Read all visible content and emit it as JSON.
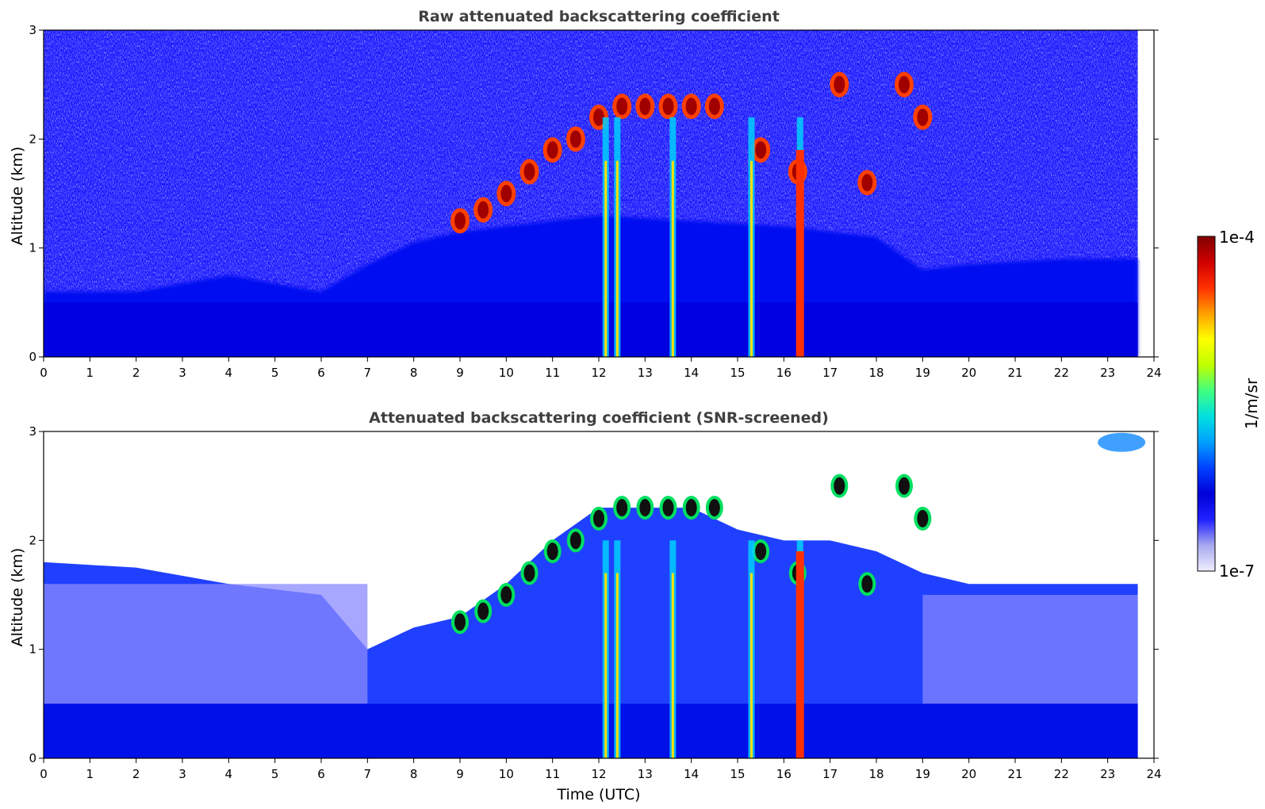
{
  "chart_data": [
    {
      "type": "heatmap",
      "title": "Raw attenuated backscattering coefficient",
      "xlabel": "",
      "ylabel": "Altitude (km)",
      "xlim": [
        0,
        24
      ],
      "ylim": [
        0,
        3
      ],
      "xticks": [
        0,
        1,
        2,
        3,
        4,
        5,
        6,
        7,
        8,
        9,
        10,
        11,
        12,
        13,
        14,
        15,
        16,
        17,
        18,
        19,
        20,
        21,
        22,
        23,
        24
      ],
      "yticks": [
        0,
        1,
        2,
        3
      ],
      "data_end_time": 23.65,
      "colorscale": "log",
      "clim": [
        1e-07,
        0.0001
      ],
      "features": {
        "boundary_layer_top_km": [
          [
            0,
            0.6
          ],
          [
            2,
            0.6
          ],
          [
            4,
            0.75
          ],
          [
            6,
            0.6
          ],
          [
            7,
            0.85
          ],
          [
            8,
            1.05
          ],
          [
            9,
            1.15
          ],
          [
            10,
            1.2
          ],
          [
            12,
            1.3
          ],
          [
            14,
            1.25
          ],
          [
            16,
            1.2
          ],
          [
            18,
            1.1
          ],
          [
            19,
            0.8
          ],
          [
            20,
            0.85
          ],
          [
            22,
            0.9
          ],
          [
            23.65,
            0.9
          ]
        ],
        "cloud_layer_km": [
          [
            9.0,
            1.25
          ],
          [
            9.5,
            1.35
          ],
          [
            10.0,
            1.5
          ],
          [
            10.5,
            1.7
          ],
          [
            11.0,
            1.9
          ],
          [
            11.5,
            2.0
          ],
          [
            12.0,
            2.2
          ],
          [
            12.5,
            2.3
          ],
          [
            13.0,
            2.3
          ],
          [
            13.5,
            2.3
          ],
          [
            14.0,
            2.3
          ],
          [
            14.5,
            2.3
          ],
          [
            15.5,
            1.9
          ],
          [
            16.3,
            1.7
          ],
          [
            17.2,
            2.5
          ],
          [
            17.8,
            1.6
          ],
          [
            18.6,
            2.5
          ],
          [
            19.0,
            2.2
          ]
        ],
        "precipitation_streaks_utc": [
          12.15,
          12.4,
          13.6,
          15.3,
          16.35
        ]
      }
    },
    {
      "type": "heatmap",
      "title": "Attenuated backscattering coefficient (SNR-screened)",
      "xlabel": "Time (UTC)",
      "ylabel": "Altitude (km)",
      "xlim": [
        0,
        24
      ],
      "ylim": [
        0,
        3
      ],
      "xticks": [
        0,
        1,
        2,
        3,
        4,
        5,
        6,
        7,
        8,
        9,
        10,
        11,
        12,
        13,
        14,
        15,
        16,
        17,
        18,
        19,
        20,
        21,
        22,
        23,
        24
      ],
      "yticks": [
        0,
        1,
        2,
        3
      ],
      "data_end_time": 23.65,
      "colorscale": "log",
      "clim": [
        1e-07,
        0.0001
      ],
      "features": {
        "screened_top_km": [
          [
            0,
            1.8
          ],
          [
            2,
            1.75
          ],
          [
            4,
            1.6
          ],
          [
            6,
            1.5
          ],
          [
            7,
            1.0
          ],
          [
            8,
            1.2
          ],
          [
            9,
            1.3
          ],
          [
            10,
            1.6
          ],
          [
            11,
            2.0
          ],
          [
            12,
            2.3
          ],
          [
            13,
            2.3
          ],
          [
            14,
            2.3
          ],
          [
            15,
            2.1
          ],
          [
            16,
            2.0
          ],
          [
            17,
            2.0
          ],
          [
            18,
            1.9
          ],
          [
            19,
            1.7
          ],
          [
            20,
            1.6
          ],
          [
            22,
            1.6
          ],
          [
            23.65,
            1.6
          ]
        ]
      }
    }
  ],
  "colorbar": {
    "label": "1/m/sr",
    "max_label": "1e-4",
    "min_label": "1e-7",
    "colors": [
      "#eeeeff",
      "#a8a8f0",
      "#2020ff",
      "#0000d8",
      "#0040ff",
      "#00a0ff",
      "#00e0e0",
      "#40ff80",
      "#c0ff00",
      "#ffff00",
      "#ffa000",
      "#ff3000",
      "#d00000",
      "#800000"
    ]
  }
}
